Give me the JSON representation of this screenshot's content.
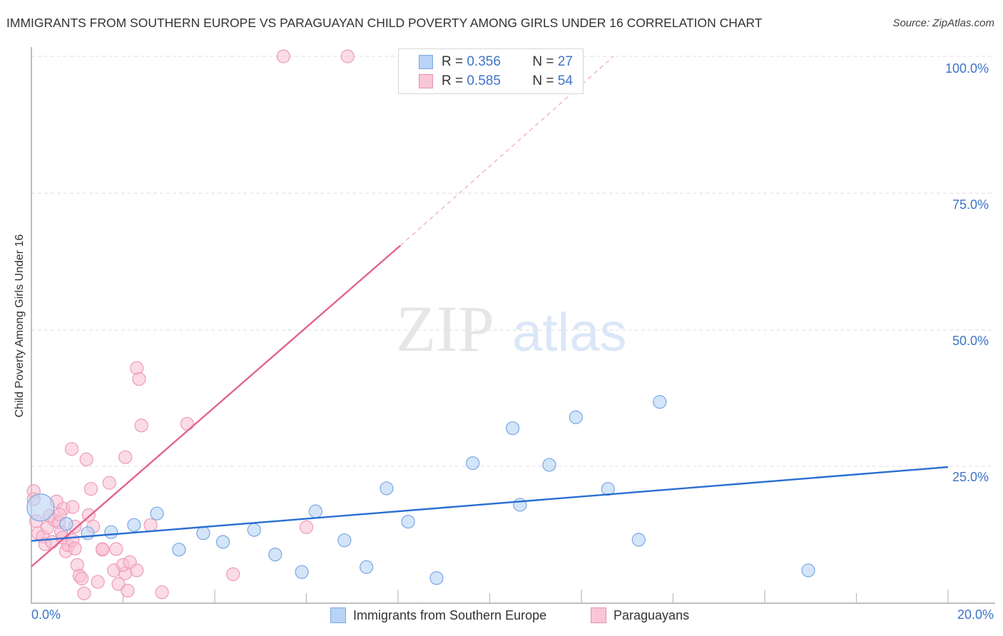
{
  "header": {
    "title": "IMMIGRANTS FROM SOUTHERN EUROPE VS PARAGUAYAN CHILD POVERTY AMONG GIRLS UNDER 16 CORRELATION CHART",
    "source": "Source: ZipAtlas.com"
  },
  "legend": {
    "series1": {
      "r_label": "R = ",
      "r_value": "0.356",
      "n_label": "N = ",
      "n_value": "27",
      "color": "#b8d3f5"
    },
    "series2": {
      "r_label": "R = ",
      "r_value": "0.585",
      "n_label": "N = ",
      "n_value": "54",
      "color": "#f8c6d6"
    }
  },
  "bottom_legend": {
    "series1_label": "Immigrants from Southern Europe",
    "series2_label": "Paraguayans"
  },
  "axes": {
    "ylabel": "Child Poverty Among Girls Under 16",
    "yticks": [
      "100.0%",
      "75.0%",
      "50.0%",
      "25.0%"
    ],
    "xmin_label": "0.0%",
    "xmax_label": "20.0%"
  },
  "watermark": {
    "zip": "ZIP",
    "atlas": "atlas"
  },
  "chart_data": {
    "type": "scatter",
    "title": "IMMIGRANTS FROM SOUTHERN EUROPE VS PARAGUAYAN CHILD POVERTY AMONG GIRLS UNDER 16 CORRELATION CHART",
    "xlabel": "Immigrants from Southern Europe",
    "ylabel": "Child Poverty Among Girls Under 16",
    "xlim": [
      0,
      20
    ],
    "ylim": [
      0,
      100
    ],
    "x_tick_labels": [
      "0.0%",
      "20.0%"
    ],
    "y_tick_labels": [
      "25.0%",
      "50.0%",
      "75.0%",
      "100.0%"
    ],
    "grid": true,
    "legend_position": "top-center",
    "series": [
      {
        "name": "Immigrants from Southern Europe",
        "color": "#6f9fe0",
        "R": 0.356,
        "N": 27,
        "trend": {
          "x": [
            0,
            20
          ],
          "y": [
            11.4,
            24.9
          ]
        },
        "points": [
          [
            0.2,
            17.5
          ],
          [
            0.76,
            14.5
          ],
          [
            1.23,
            12.8
          ],
          [
            1.74,
            13.0
          ],
          [
            2.24,
            14.3
          ],
          [
            2.74,
            16.4
          ],
          [
            3.22,
            9.8
          ],
          [
            3.75,
            12.8
          ],
          [
            4.18,
            11.2
          ],
          [
            4.86,
            13.4
          ],
          [
            5.32,
            8.9
          ],
          [
            5.9,
            5.7
          ],
          [
            6.2,
            16.8
          ],
          [
            6.83,
            11.5
          ],
          [
            7.31,
            6.6
          ],
          [
            7.75,
            21.0
          ],
          [
            8.22,
            14.9
          ],
          [
            8.84,
            4.6
          ],
          [
            9.63,
            25.6
          ],
          [
            10.5,
            32.0
          ],
          [
            10.66,
            18.0
          ],
          [
            11.3,
            25.3
          ],
          [
            11.88,
            34.0
          ],
          [
            12.58,
            20.9
          ],
          [
            13.25,
            11.6
          ],
          [
            13.71,
            36.8
          ],
          [
            16.95,
            6.0
          ]
        ]
      },
      {
        "name": "Paraguayans",
        "color": "#ee8fb0",
        "R": 0.585,
        "N": 54,
        "trend": {
          "x": [
            0,
            8.05
          ],
          "y": [
            6.7,
            65.4
          ]
        },
        "trend_dashed": {
          "x": [
            8.05,
            12.7
          ],
          "y": [
            65.4,
            100.0
          ]
        },
        "points": [
          [
            0.05,
            20.5
          ],
          [
            0.05,
            19.0
          ],
          [
            0.1,
            15.0
          ],
          [
            0.15,
            12.8
          ],
          [
            0.25,
            12.2
          ],
          [
            0.3,
            10.8
          ],
          [
            0.35,
            13.8
          ],
          [
            0.45,
            11.2
          ],
          [
            0.4,
            16.0
          ],
          [
            0.55,
            18.6
          ],
          [
            0.5,
            15.2
          ],
          [
            0.6,
            14.8
          ],
          [
            0.65,
            13.0
          ],
          [
            0.7,
            17.3
          ],
          [
            0.75,
            9.5
          ],
          [
            0.8,
            10.6
          ],
          [
            0.62,
            16.2
          ],
          [
            0.68,
            12.0
          ],
          [
            0.9,
            11.5
          ],
          [
            0.95,
            14.0
          ],
          [
            0.9,
            17.6
          ],
          [
            0.88,
            28.2
          ],
          [
            0.95,
            10.0
          ],
          [
            1.0,
            7.0
          ],
          [
            1.05,
            5.0
          ],
          [
            1.1,
            4.5
          ],
          [
            1.15,
            1.8
          ],
          [
            1.2,
            26.3
          ],
          [
            1.25,
            16.1
          ],
          [
            1.3,
            20.9
          ],
          [
            1.35,
            14.0
          ],
          [
            1.45,
            3.9
          ],
          [
            1.55,
            9.8
          ],
          [
            1.7,
            22.0
          ],
          [
            1.55,
            9.9
          ],
          [
            1.8,
            6.0
          ],
          [
            1.85,
            9.9
          ],
          [
            1.9,
            3.5
          ],
          [
            2.05,
            5.5
          ],
          [
            2.0,
            7.0
          ],
          [
            2.15,
            7.5
          ],
          [
            2.05,
            26.7
          ],
          [
            2.1,
            2.3
          ],
          [
            2.3,
            6.0
          ],
          [
            2.3,
            43.0
          ],
          [
            2.35,
            41.0
          ],
          [
            2.4,
            32.5
          ],
          [
            2.6,
            14.3
          ],
          [
            2.85,
            2.0
          ],
          [
            3.4,
            32.8
          ],
          [
            4.4,
            5.3
          ],
          [
            6.0,
            13.9
          ],
          [
            5.5,
            100.0
          ],
          [
            6.9,
            100.0
          ]
        ]
      }
    ]
  }
}
